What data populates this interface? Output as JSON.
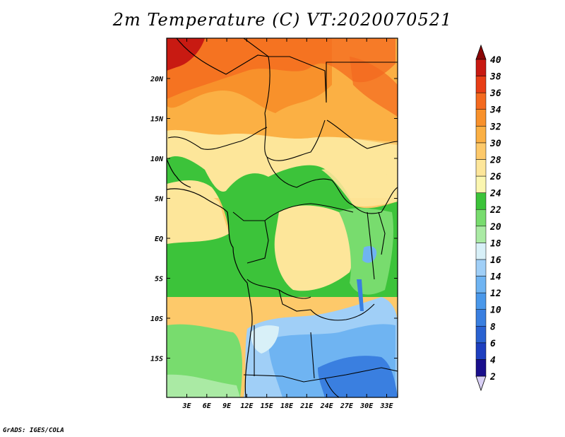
{
  "title": "2m Temperature (C) VT:2020070521",
  "credit": "GrADS: IGES/COLA",
  "axes": {
    "lon_ticks": [
      "3E",
      "6E",
      "9E",
      "12E",
      "15E",
      "18E",
      "21E",
      "24E",
      "27E",
      "30E",
      "33E"
    ],
    "lat_ticks": [
      "20N",
      "15N",
      "10N",
      "5N",
      "EQ",
      "5S",
      "10S",
      "15S"
    ]
  },
  "colorbar": {
    "levels": [
      2,
      4,
      6,
      8,
      10,
      12,
      14,
      16,
      18,
      20,
      22,
      24,
      26,
      28,
      30,
      32,
      34,
      36,
      38,
      40
    ],
    "labels": [
      "2",
      "4",
      "6",
      "8",
      "10",
      "12",
      "14",
      "16",
      "18",
      "20",
      "22",
      "24",
      "26",
      "28",
      "30",
      "32",
      "34",
      "36",
      "38",
      "40"
    ],
    "colors": [
      "#1a0f8c",
      "#1e3fbf",
      "#2a62d1",
      "#3a7fe0",
      "#4a98ea",
      "#6fb4f2",
      "#a0cff7",
      "#d8f0f8",
      "#aaeaa4",
      "#78dc6e",
      "#3cc33a",
      "#fbf6b0",
      "#fde69a",
      "#fdc96a",
      "#fbb044",
      "#f8912b",
      "#f46a1f",
      "#e83e16",
      "#c81a12",
      "#a00a0a"
    ],
    "under_color": "#d9d0f5",
    "over_color": "#8a0606"
  }
}
